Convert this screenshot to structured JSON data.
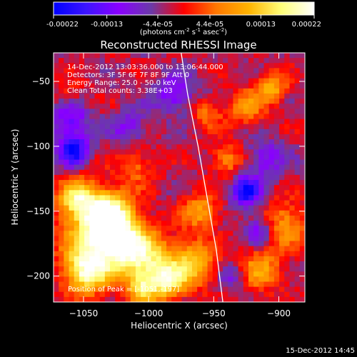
{
  "chart_data": {
    "type": "heatmap",
    "title": "Reconstructed RHESSI Image",
    "xlabel": "Heliocentric X (arcsec)",
    "ylabel": "Heliocentric Y (arcsec)",
    "xlim": [
      -1073,
      -880
    ],
    "ylim": [
      -220,
      -28
    ],
    "x_ticks": [
      -1050,
      -1000,
      -950,
      -900
    ],
    "y_ticks": [
      -50,
      -100,
      -150,
      -200
    ],
    "colorbar": {
      "vmin": -0.00022,
      "vmax": 0.00022,
      "tick_values": [
        -0.00022,
        -0.00013,
        -4.4e-05,
        4.4e-05,
        0.00013,
        0.00022
      ],
      "tick_labels": [
        "-0.00022",
        "-0.00013",
        "-4.4e-05",
        "4.4e-05",
        "0.00013",
        "0.00022"
      ],
      "unit_label": "(photons cm",
      "unit_exp1": "-2",
      "unit_mid": " s",
      "unit_exp2": "-1",
      "unit_mid2": " asec",
      "unit_exp3": "-2",
      "unit_end": ")"
    },
    "annotations": [
      "14-Dec-2012 13:03:36.000 to 13:06:44.000",
      "Detectors: 3F 5F 6F 7F 8F 9F  Att 0",
      "Energy Range: 25.0 - 50.0 keV",
      "Clean     Total counts: 3.38E+03"
    ],
    "peak_label": "Position of Peak = [-1051,-197]",
    "peak": [
      -1051,
      -197
    ],
    "limb_arc": [
      [
        -975,
        -28
      ],
      [
        -970,
        -60
      ],
      [
        -962,
        -100
      ],
      [
        -955,
        -140
      ],
      [
        -948,
        -180
      ],
      [
        -943,
        -220
      ]
    ],
    "hotspots": [
      {
        "x": -1048,
        "y": -197,
        "v": 1.0,
        "r": 12
      },
      {
        "x": -1040,
        "y": -165,
        "v": 0.9,
        "r": 18
      },
      {
        "x": -1055,
        "y": -140,
        "v": 0.75,
        "r": 10
      },
      {
        "x": -1020,
        "y": -175,
        "v": 0.8,
        "r": 14
      },
      {
        "x": -1030,
        "y": -150,
        "v": 0.7,
        "r": 12
      },
      {
        "x": -1000,
        "y": -190,
        "v": 0.75,
        "r": 15
      },
      {
        "x": -985,
        "y": -205,
        "v": 0.65,
        "r": 10
      },
      {
        "x": -965,
        "y": -190,
        "v": 0.7,
        "r": 12
      },
      {
        "x": -960,
        "y": -150,
        "v": 0.55,
        "r": 10
      },
      {
        "x": -940,
        "y": -110,
        "v": 0.5,
        "r": 8
      },
      {
        "x": -905,
        "y": -55,
        "v": 0.6,
        "r": 8
      },
      {
        "x": -925,
        "y": -70,
        "v": 0.45,
        "r": 10
      },
      {
        "x": -895,
        "y": -160,
        "v": 0.55,
        "r": 12
      },
      {
        "x": -915,
        "y": -195,
        "v": 0.55,
        "r": 12
      },
      {
        "x": -1010,
        "y": -115,
        "v": 0.35,
        "r": 10
      },
      {
        "x": -955,
        "y": -75,
        "v": 0.4,
        "r": 8
      },
      {
        "x": -1060,
        "y": -60,
        "v": 0.2,
        "r": 8
      },
      {
        "x": -1005,
        "y": -210,
        "v": 0.55,
        "r": 8
      }
    ],
    "coldspots": [
      {
        "x": -1058,
        "y": -103,
        "v": -0.9,
        "r": 8
      },
      {
        "x": -925,
        "y": -135,
        "v": -0.85,
        "r": 8
      },
      {
        "x": -980,
        "y": -60,
        "v": -0.5,
        "r": 10
      },
      {
        "x": -1060,
        "y": -80,
        "v": -0.5,
        "r": 10
      },
      {
        "x": -910,
        "y": -110,
        "v": -0.4,
        "r": 10
      },
      {
        "x": -915,
        "y": -165,
        "v": -0.5,
        "r": 8
      },
      {
        "x": -1015,
        "y": -85,
        "v": -0.35,
        "r": 10
      },
      {
        "x": -935,
        "y": -200,
        "v": -0.35,
        "r": 8
      }
    ],
    "colors": {
      "background": "#000000",
      "foreground": "#ffffff",
      "colormap": [
        "#0000ff",
        "#3c14ff",
        "#8a00ff",
        "#6a3aa8",
        "#ff0000",
        "#ff7800",
        "#ffb400",
        "#ffff7a",
        "#ffffff"
      ]
    }
  },
  "footer": {
    "timestamp": "15-Dec-2012 14:45"
  }
}
